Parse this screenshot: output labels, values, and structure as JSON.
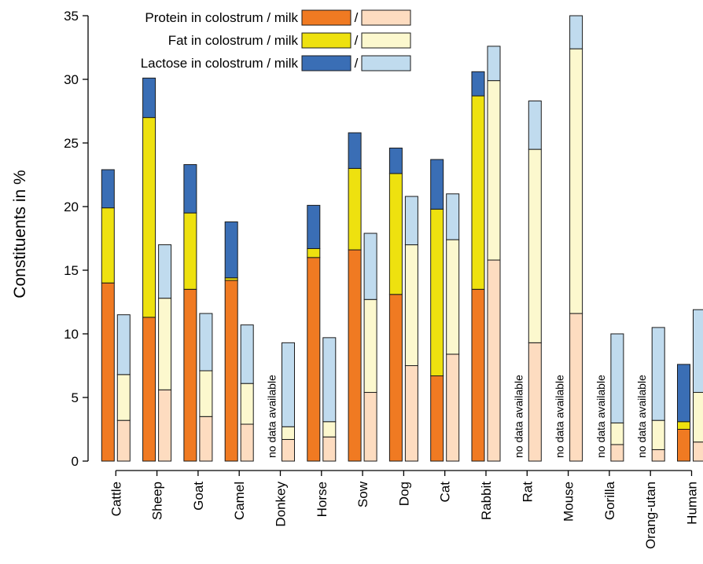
{
  "chart_data": {
    "type": "bar",
    "stacked": true,
    "grouped": true,
    "title": "",
    "xlabel": "",
    "ylabel": "Constituents in %",
    "ylim": [
      0,
      35
    ],
    "yticks": [
      0,
      5,
      10,
      15,
      20,
      25,
      30,
      35
    ],
    "grid": false,
    "legend_position": "top-left",
    "categories": [
      "Cattle",
      "Sheep",
      "Goat",
      "Camel",
      "Donkey",
      "Horse",
      "Sow",
      "Dog",
      "Cat",
      "Rabbit",
      "Rat",
      "Mouse",
      "Gorilla",
      "Orang-utan",
      "Human"
    ],
    "legend": [
      {
        "label": "Protein in colostrum / milk",
        "separator": "/",
        "colostrum_color": "#F07A22",
        "milk_color": "#FDDCC0"
      },
      {
        "label": "Fat in colostrum / milk",
        "separator": "/",
        "colostrum_color": "#EEE10F",
        "milk_color": "#FCF8CE"
      },
      {
        "label": "Lactose in colostrum / milk",
        "separator": "/",
        "colostrum_color": "#3A6EB5",
        "milk_color": "#C0DBEE"
      }
    ],
    "no_data_text": "no data available",
    "colostrum": {
      "protein": [
        14.0,
        11.3,
        13.5,
        14.2,
        null,
        16.0,
        16.6,
        13.1,
        6.7,
        13.5,
        null,
        null,
        null,
        null,
        2.5
      ],
      "fat": [
        5.9,
        15.7,
        6.0,
        0.2,
        null,
        0.7,
        6.4,
        9.5,
        13.1,
        15.2,
        null,
        null,
        null,
        null,
        0.6
      ],
      "lactose": [
        3.0,
        3.1,
        3.8,
        4.4,
        null,
        3.4,
        2.8,
        2.0,
        3.9,
        1.9,
        null,
        null,
        null,
        null,
        4.5
      ]
    },
    "milk": {
      "protein": [
        3.2,
        5.6,
        3.5,
        2.9,
        1.7,
        1.9,
        5.4,
        7.5,
        8.4,
        15.8,
        9.3,
        11.6,
        1.3,
        0.9,
        1.5
      ],
      "fat": [
        3.6,
        7.2,
        3.6,
        3.2,
        1.0,
        1.2,
        7.3,
        9.5,
        9.0,
        14.1,
        15.2,
        20.8,
        1.7,
        2.3,
        3.9
      ],
      "lactose": [
        4.7,
        4.2,
        4.5,
        4.6,
        6.6,
        6.6,
        5.2,
        3.8,
        3.6,
        2.7,
        3.8,
        2.6,
        7.0,
        7.3,
        6.5
      ]
    }
  }
}
